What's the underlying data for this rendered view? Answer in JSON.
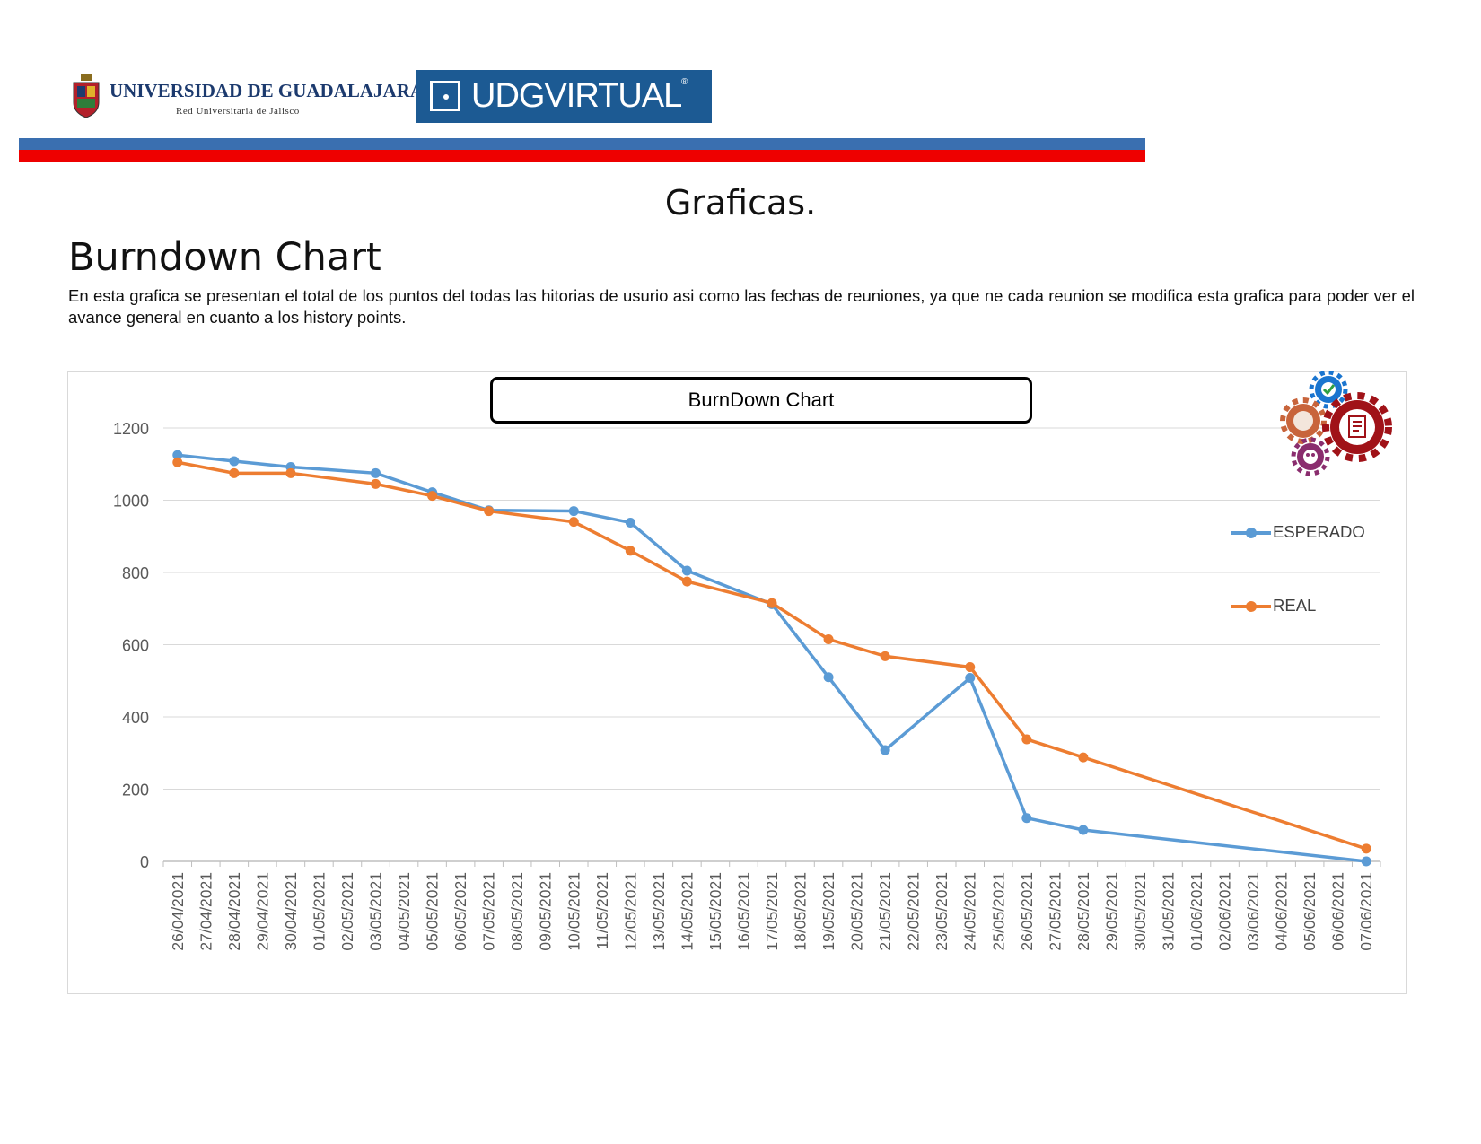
{
  "header": {
    "university_name": "UNIVERSIDAD DE GUADALAJARA",
    "university_subtitle": "Red Universitaria de Jalisco",
    "virtual_brand": "UDGVIRTUAL",
    "registered_mark": "®",
    "brand_color": "#1c5a93",
    "stripe_colors": [
      "#3a6fb0",
      "#ee0000"
    ]
  },
  "page": {
    "title": "Graficas.",
    "section_title": "Burndown Chart",
    "description": "En esta grafica se presentan el total de los puntos del todas las  hitorias de usurio asi como las fechas de reuniones, ya que ne cada reunion se modifica esta grafica para poder ver el avance general en cuanto a los history points."
  },
  "chart_data": {
    "type": "line",
    "title": "BurnDown Chart",
    "xlabel": "",
    "ylabel": "",
    "ylim": [
      0,
      1200
    ],
    "yticks": [
      0,
      200,
      400,
      600,
      800,
      1000,
      1200
    ],
    "grid": true,
    "legend_position": "right",
    "categories": [
      "26/04/2021",
      "27/04/2021",
      "28/04/2021",
      "29/04/2021",
      "30/04/2021",
      "01/05/2021",
      "02/05/2021",
      "03/05/2021",
      "04/05/2021",
      "05/05/2021",
      "06/05/2021",
      "07/05/2021",
      "08/05/2021",
      "09/05/2021",
      "10/05/2021",
      "11/05/2021",
      "12/05/2021",
      "13/05/2021",
      "14/05/2021",
      "15/05/2021",
      "16/05/2021",
      "17/05/2021",
      "18/05/2021",
      "19/05/2021",
      "20/05/2021",
      "21/05/2021",
      "22/05/2021",
      "23/05/2021",
      "24/05/2021",
      "25/05/2021",
      "26/05/2021",
      "27/05/2021",
      "28/05/2021",
      "29/05/2021",
      "30/05/2021",
      "31/05/2021",
      "01/06/2021",
      "02/06/2021",
      "03/06/2021",
      "04/06/2021",
      "05/06/2021",
      "06/06/2021",
      "07/06/2021"
    ],
    "series": [
      {
        "name": "ESPERADO",
        "color": "#5b9bd5",
        "points": [
          {
            "x": "26/04/2021",
            "y": 1125
          },
          {
            "x": "28/04/2021",
            "y": 1108
          },
          {
            "x": "30/04/2021",
            "y": 1092
          },
          {
            "x": "03/05/2021",
            "y": 1075
          },
          {
            "x": "05/05/2021",
            "y": 1022
          },
          {
            "x": "07/05/2021",
            "y": 972
          },
          {
            "x": "10/05/2021",
            "y": 970
          },
          {
            "x": "12/05/2021",
            "y": 938
          },
          {
            "x": "14/05/2021",
            "y": 805
          },
          {
            "x": "17/05/2021",
            "y": 712
          },
          {
            "x": "19/05/2021",
            "y": 510
          },
          {
            "x": "21/05/2021",
            "y": 308
          },
          {
            "x": "24/05/2021",
            "y": 508
          },
          {
            "x": "26/05/2021",
            "y": 120
          },
          {
            "x": "28/05/2021",
            "y": 87
          },
          {
            "x": "07/06/2021",
            "y": 0
          }
        ]
      },
      {
        "name": "REAL",
        "color": "#ed7d31",
        "points": [
          {
            "x": "26/04/2021",
            "y": 1105
          },
          {
            "x": "28/04/2021",
            "y": 1075
          },
          {
            "x": "30/04/2021",
            "y": 1075
          },
          {
            "x": "03/05/2021",
            "y": 1045
          },
          {
            "x": "05/05/2021",
            "y": 1012
          },
          {
            "x": "07/05/2021",
            "y": 970
          },
          {
            "x": "10/05/2021",
            "y": 940
          },
          {
            "x": "12/05/2021",
            "y": 860
          },
          {
            "x": "14/05/2021",
            "y": 775
          },
          {
            "x": "17/05/2021",
            "y": 715
          },
          {
            "x": "19/05/2021",
            "y": 615
          },
          {
            "x": "21/05/2021",
            "y": 568
          },
          {
            "x": "24/05/2021",
            "y": 538
          },
          {
            "x": "26/05/2021",
            "y": 338
          },
          {
            "x": "28/05/2021",
            "y": 288
          },
          {
            "x": "07/06/2021",
            "y": 35
          }
        ]
      }
    ]
  }
}
